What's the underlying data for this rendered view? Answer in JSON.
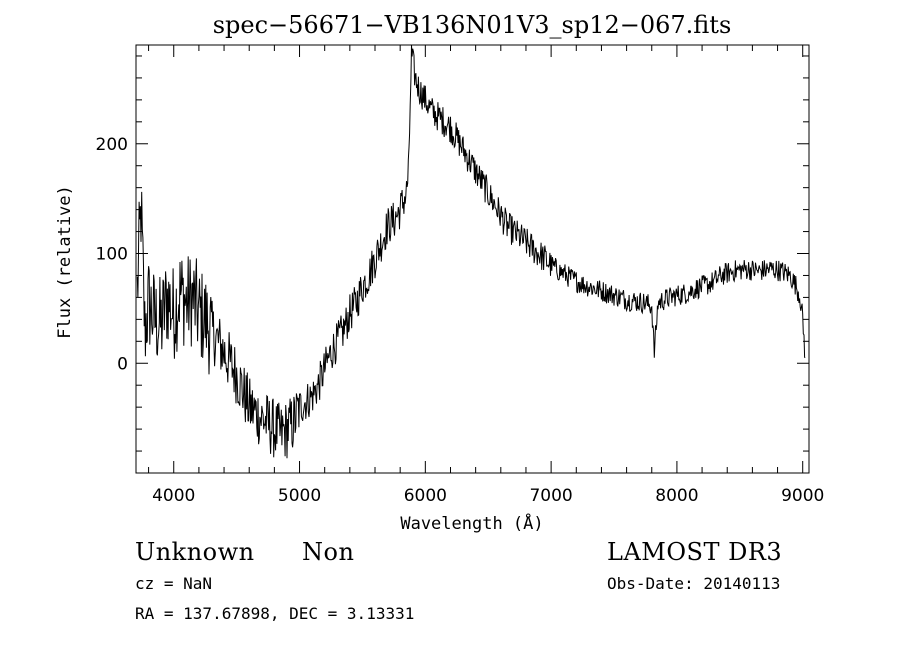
{
  "chart_data": {
    "type": "line",
    "title": "spec−56671−VB136N01V3_sp12−067.fits",
    "xlabel": "Wavelength (Å)",
    "ylabel": "Flux (relative)",
    "xlim": [
      3700,
      9050
    ],
    "ylim": [
      -100,
      290
    ],
    "xticks": [
      4000,
      5000,
      6000,
      7000,
      8000,
      9000
    ],
    "yticks": [
      0,
      100,
      200
    ],
    "grid": false,
    "series": [
      {
        "x": [
          3710,
          3740,
          3770,
          3800,
          3850,
          3900,
          3950,
          4000,
          4050,
          4100,
          4150,
          4200,
          4250,
          4300,
          4350,
          4400,
          4450,
          4500,
          4550,
          4600,
          4650,
          4700,
          4750,
          4800,
          4850,
          4900,
          4950,
          5000,
          5050,
          5100,
          5150,
          5200,
          5250,
          5300,
          5350,
          5400,
          5450,
          5500,
          5550,
          5600,
          5650,
          5700,
          5750,
          5800,
          5850,
          5870,
          5880,
          5890,
          5900,
          5920,
          5950,
          6000,
          6050,
          6100,
          6150,
          6200,
          6250,
          6300,
          6350,
          6400,
          6450,
          6500,
          6550,
          6600,
          6650,
          6700,
          6750,
          6800,
          6850,
          6900,
          6950,
          7000,
          7050,
          7100,
          7150,
          7200,
          7250,
          7300,
          7350,
          7400,
          7450,
          7500,
          7550,
          7600,
          7650,
          7700,
          7750,
          7800,
          7820,
          7850,
          7900,
          7950,
          8000,
          8050,
          8100,
          8150,
          8200,
          8250,
          8300,
          8350,
          8400,
          8450,
          8500,
          8550,
          8600,
          8650,
          8700,
          8750,
          8800,
          8850,
          8900,
          8950,
          8980,
          9000,
          9020
        ],
        "y": [
          65,
          140,
          30,
          55,
          40,
          35,
          60,
          45,
          65,
          55,
          60,
          45,
          40,
          30,
          20,
          10,
          0,
          -10,
          -25,
          -40,
          -45,
          -50,
          -55,
          -60,
          -65,
          -60,
          -55,
          -40,
          -35,
          -30,
          -20,
          -5,
          10,
          20,
          30,
          45,
          55,
          70,
          80,
          95,
          110,
          125,
          130,
          140,
          155,
          180,
          240,
          280,
          275,
          260,
          250,
          240,
          230,
          225,
          220,
          215,
          205,
          195,
          185,
          175,
          165,
          155,
          145,
          135,
          125,
          120,
          115,
          110,
          105,
          100,
          95,
          90,
          85,
          82,
          78,
          75,
          72,
          70,
          68,
          66,
          64,
          62,
          60,
          58,
          57,
          56,
          55,
          52,
          10,
          55,
          58,
          60,
          62,
          63,
          65,
          68,
          70,
          72,
          75,
          80,
          82,
          84,
          85,
          86,
          85,
          84,
          85,
          86,
          85,
          83,
          80,
          70,
          60,
          40,
          5
        ]
      }
    ]
  },
  "footer": {
    "object_class": "Unknown",
    "object_subclass": "Non",
    "survey": "LAMOST DR3",
    "cz": "cz = NaN",
    "obs_date": "Obs-Date: 20140113",
    "coords": "RA = 137.67898, DEC =    3.13331"
  }
}
